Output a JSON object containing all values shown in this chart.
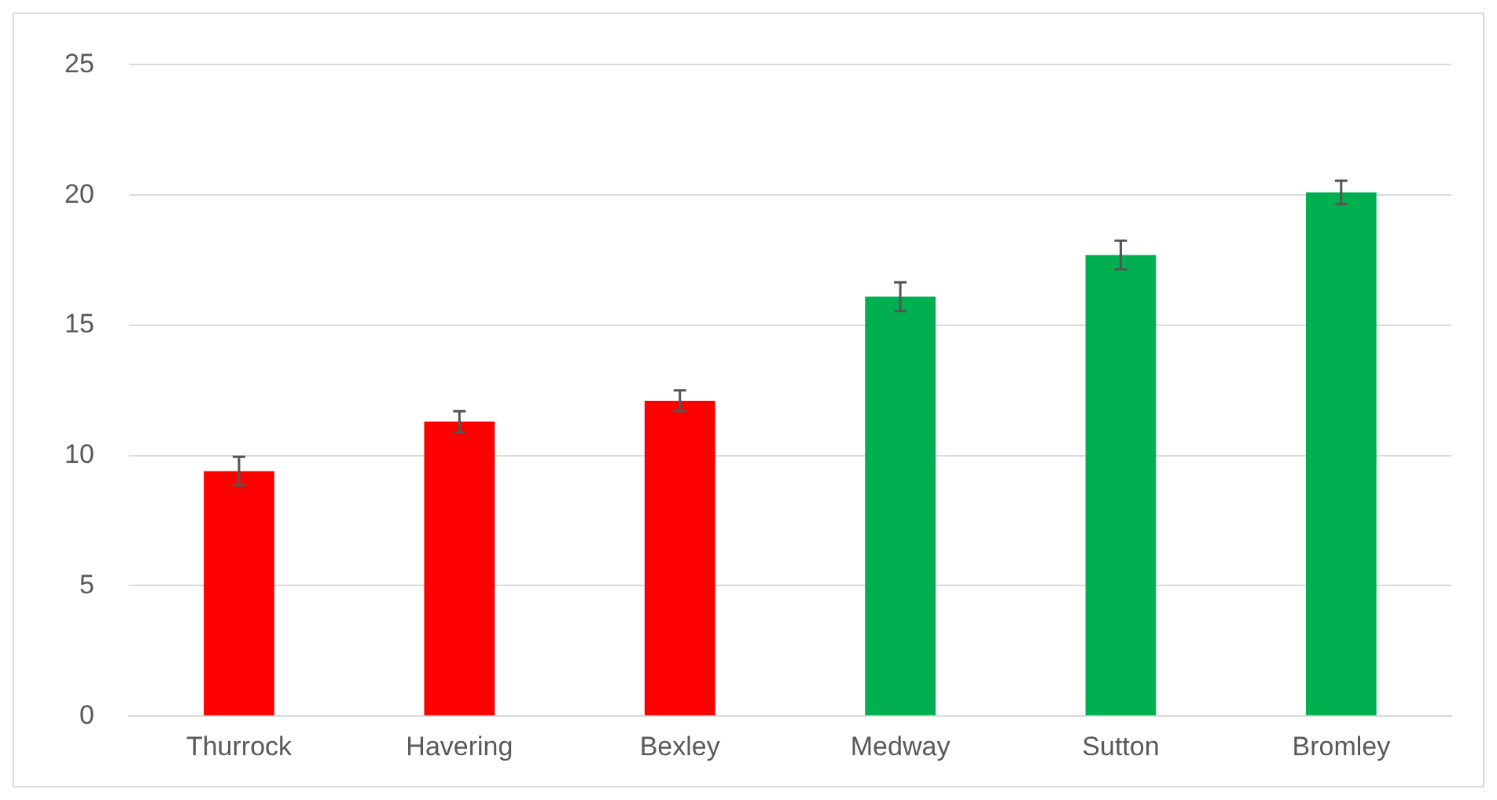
{
  "chart_data": {
    "type": "bar",
    "categories": [
      "Thurrock",
      "Havering",
      "Bexley",
      "Medway",
      "Sutton",
      "Bromley"
    ],
    "values": [
      9.4,
      11.3,
      12.1,
      16.1,
      17.7,
      20.1
    ],
    "colors": [
      "#ff0000",
      "#ff0000",
      "#ff0000",
      "#00b050",
      "#00b050",
      "#00b050"
    ],
    "errors": [
      0.55,
      0.4,
      0.4,
      0.55,
      0.55,
      0.45
    ],
    "ylim": [
      0,
      25
    ],
    "yticks": [
      0,
      5,
      10,
      15,
      20,
      25
    ],
    "grid": "y",
    "legend": false
  }
}
